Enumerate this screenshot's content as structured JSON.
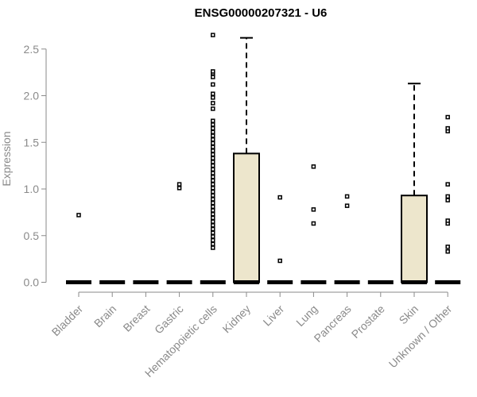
{
  "chart_data": {
    "type": "boxplot",
    "title": "ENSG00000207321 - U6",
    "xlabel": "",
    "ylabel": "Expression",
    "ylim": [
      0,
      2.6
    ],
    "yticks": [
      "0.0",
      "0.5",
      "1.0",
      "1.5",
      "2.0",
      "2.5"
    ],
    "grid": false,
    "legend": "none",
    "categories": [
      "Bladder",
      "Brain",
      "Breast",
      "Gastric",
      "Hematopoietic cells",
      "Kidney",
      "Liver",
      "Lung",
      "Pancreas",
      "Prostate",
      "Skin",
      "Unknown / Other"
    ],
    "series": [
      {
        "category": "Bladder",
        "q1": 0,
        "median": 0,
        "q3": 0,
        "whisker_high": 0,
        "outliers": [
          0.72
        ]
      },
      {
        "category": "Brain",
        "q1": 0,
        "median": 0,
        "q3": 0,
        "whisker_high": 0,
        "outliers": []
      },
      {
        "category": "Breast",
        "q1": 0,
        "median": 0,
        "q3": 0,
        "whisker_high": 0,
        "outliers": []
      },
      {
        "category": "Gastric",
        "q1": 0,
        "median": 0,
        "q3": 0,
        "whisker_high": 0,
        "outliers": [
          1.01,
          1.05
        ]
      },
      {
        "category": "Hematopoietic cells",
        "q1": 0,
        "median": 0,
        "q3": 0,
        "whisker_high": 0,
        "outliers": [
          0.37,
          0.41,
          0.45,
          0.49,
          0.53,
          0.57,
          0.61,
          0.65,
          0.69,
          0.73,
          0.77,
          0.81,
          0.85,
          0.89,
          0.93,
          0.97,
          1.01,
          1.05,
          1.09,
          1.13,
          1.17,
          1.21,
          1.25,
          1.29,
          1.33,
          1.37,
          1.41,
          1.45,
          1.49,
          1.53,
          1.57,
          1.61,
          1.65,
          1.69,
          1.73,
          1.86,
          1.92,
          1.98,
          2.02,
          2.12,
          2.2,
          2.24,
          2.26,
          2.65
        ]
      },
      {
        "category": "Kidney",
        "q1": 0,
        "median": 0,
        "q3": 1.38,
        "whisker_high": 2.62,
        "outliers": []
      },
      {
        "category": "Liver",
        "q1": 0,
        "median": 0,
        "q3": 0,
        "whisker_high": 0,
        "outliers": [
          0.23,
          0.91
        ]
      },
      {
        "category": "Lung",
        "q1": 0,
        "median": 0,
        "q3": 0,
        "whisker_high": 0,
        "outliers": [
          0.63,
          0.78,
          1.24
        ]
      },
      {
        "category": "Pancreas",
        "q1": 0,
        "median": 0,
        "q3": 0,
        "whisker_high": 0,
        "outliers": [
          0.82,
          0.92
        ]
      },
      {
        "category": "Prostate",
        "q1": 0,
        "median": 0,
        "q3": 0,
        "whisker_high": 0,
        "outliers": []
      },
      {
        "category": "Skin",
        "q1": 0,
        "median": 0,
        "q3": 0.93,
        "whisker_high": 2.13,
        "outliers": []
      },
      {
        "category": "Unknown / Other",
        "q1": 0,
        "median": 0,
        "q3": 0,
        "whisker_high": 0,
        "outliers": [
          0.33,
          0.38,
          0.63,
          0.66,
          0.88,
          0.92,
          1.05,
          1.62,
          1.65,
          1.77
        ]
      }
    ],
    "box_fill": "#ede6cc",
    "line_color": "#000000",
    "axis_color": "#8a8a8a"
  }
}
